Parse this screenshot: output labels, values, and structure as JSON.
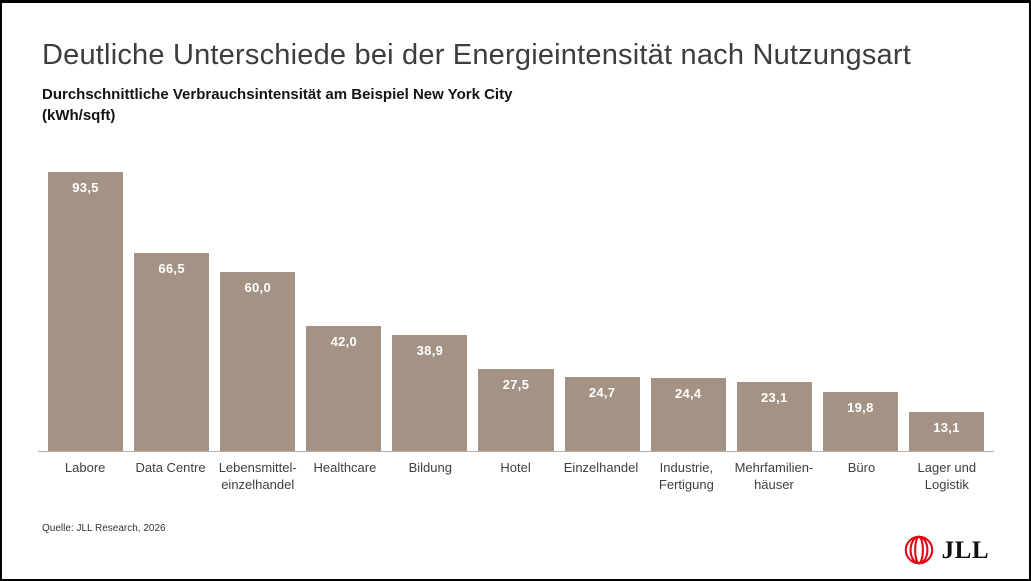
{
  "header": {
    "title": "Deutliche Unterschiede bei der Energieintensität nach Nutzungsart",
    "subtitle_line1": "Durchschnittliche Verbrauchsintensität am Beispiel New York City",
    "subtitle_line2": "(kWh/sqft)"
  },
  "chart_data": {
    "type": "bar",
    "title": "Deutliche Unterschiede bei der Energieintensität nach Nutzungsart",
    "subtitle": "Durchschnittliche Verbrauchsintensität am Beispiel New York City (kWh/sqft)",
    "ylabel": "kWh/sqft",
    "xlabel": "",
    "ylim": [
      0,
      100
    ],
    "grid": false,
    "legend": false,
    "bar_color": "#a49285",
    "value_label_color": "#ffffff",
    "axis_line_color": "#b6ada6",
    "categories": [
      [
        "Labore"
      ],
      [
        "Data Centre"
      ],
      [
        "Lebensmittel-",
        "einzelhandel"
      ],
      [
        "Healthcare"
      ],
      [
        "Bildung"
      ],
      [
        "Hotel"
      ],
      [
        "Einzelhandel"
      ],
      [
        "Industrie,",
        "Fertigung"
      ],
      [
        "Mehrfamilien-",
        "häuser"
      ],
      [
        "Büro"
      ],
      [
        "Lager und",
        "Logistik"
      ]
    ],
    "values": [
      93.5,
      66.5,
      60.0,
      42.0,
      38.9,
      27.5,
      24.7,
      24.4,
      23.1,
      19.8,
      13.1
    ],
    "value_labels": [
      "93,5",
      "66,5",
      "60,0",
      "42,0",
      "38,9",
      "27,5",
      "24,7",
      "24,4",
      "23,1",
      "19,8",
      "13,1"
    ]
  },
  "footer": {
    "source": "Quelle: JLL Research, 2026",
    "logo_text": "JLL",
    "logo_color": "#e30613"
  }
}
